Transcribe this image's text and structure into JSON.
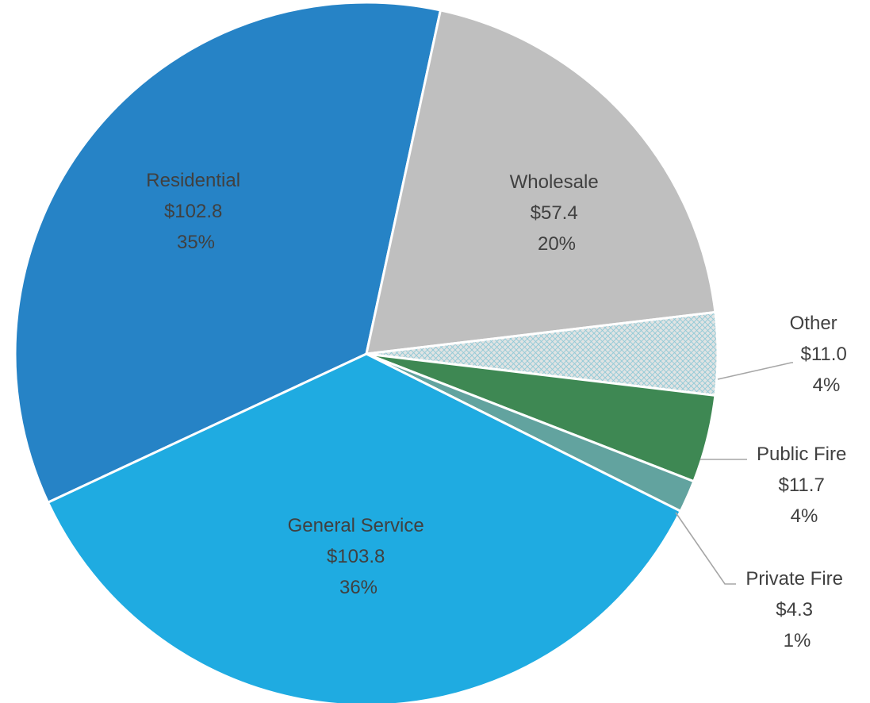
{
  "chart_data": {
    "type": "pie",
    "colors": {
      "residential": "#2683c6",
      "wholesale": "#bfbfbf",
      "other_hatch_bg": "#e0e3e3",
      "other_hatch_line": "#8fc9d6",
      "public_fire": "#3e8853",
      "private_fire": "#62a39f",
      "general_service": "#1fabe1"
    },
    "slices": [
      {
        "key": "residential",
        "label": "Residential",
        "amount": "$102.8",
        "pct": "35%",
        "value": 102.8
      },
      {
        "key": "wholesale",
        "label": "Wholesale",
        "amount": "$57.4",
        "pct": "20%",
        "value": 57.4
      },
      {
        "key": "other",
        "label": "Other",
        "amount": "$11.0",
        "pct": "4%",
        "value": 11.0
      },
      {
        "key": "public_fire",
        "label": "Public Fire",
        "amount": "$11.7",
        "pct": "4%",
        "value": 11.7
      },
      {
        "key": "private_fire",
        "label": "Private Fire",
        "amount": "$4.3",
        "pct": "1%",
        "value": 4.3
      },
      {
        "key": "general_service",
        "label": "General Service",
        "amount": "$103.8",
        "pct": "36%",
        "value": 103.8
      }
    ]
  }
}
